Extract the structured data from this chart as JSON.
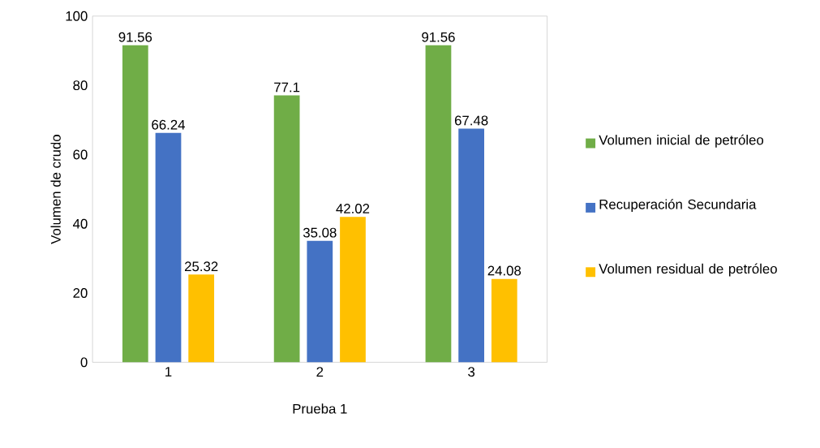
{
  "chart_data": {
    "type": "bar",
    "xlabel": "Prueba 1",
    "ylabel": "Volumen de crudo",
    "categories": [
      "1",
      "2",
      "3"
    ],
    "series": [
      {
        "name": "Volumen inicial de petróleo",
        "color": "#70ad47",
        "values": [
          91.56,
          77.1,
          91.56
        ]
      },
      {
        "name": "Recuperación Secundaria",
        "color": "#4472c4",
        "values": [
          66.24,
          35.08,
          67.48
        ]
      },
      {
        "name": "Volumen residual de petróleo",
        "color": "#ffc000",
        "values": [
          25.32,
          42.02,
          24.08
        ]
      }
    ],
    "ylim": [
      0,
      100
    ],
    "yticks": [
      0,
      20,
      40,
      60,
      80,
      100
    ],
    "data_labels": true,
    "legend": "right",
    "grid": false
  }
}
